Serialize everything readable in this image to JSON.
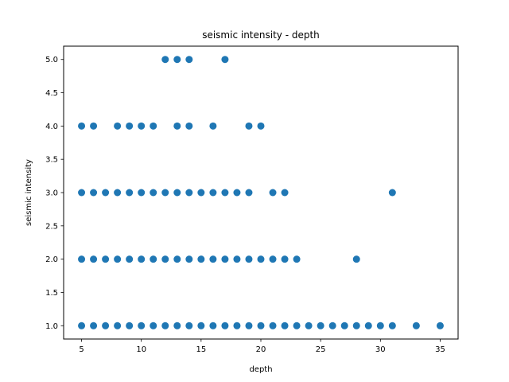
{
  "chart_data": {
    "type": "scatter",
    "title": "seismic intensity - depth",
    "xlabel": "depth",
    "ylabel": "seismic intensity",
    "xlim": [
      3.5,
      36.5
    ],
    "ylim": [
      0.8,
      5.2
    ],
    "xticks": [
      5,
      10,
      15,
      20,
      25,
      30,
      35
    ],
    "yticks": [
      1.0,
      1.5,
      2.0,
      2.5,
      3.0,
      3.5,
      4.0,
      4.5,
      5.0
    ],
    "grid": false,
    "marker_color": "#1f77b4",
    "series": [
      {
        "x": [
          5,
          6,
          7,
          8,
          9,
          10,
          11,
          12,
          13,
          14,
          15,
          16,
          17,
          18,
          19,
          20,
          21,
          22,
          23,
          24,
          25,
          26,
          27,
          28,
          29,
          30,
          31,
          33,
          35,
          5,
          6,
          7,
          8,
          9,
          10,
          11,
          12,
          13,
          14,
          15,
          16,
          17,
          18,
          19,
          20,
          21,
          22,
          23,
          28,
          5,
          6,
          7,
          8,
          9,
          10,
          11,
          12,
          13,
          14,
          15,
          16,
          17,
          18,
          19,
          21,
          22,
          31,
          5,
          6,
          8,
          9,
          10,
          11,
          13,
          14,
          16,
          19,
          20,
          12,
          13,
          14,
          17
        ],
        "y": [
          1,
          1,
          1,
          1,
          1,
          1,
          1,
          1,
          1,
          1,
          1,
          1,
          1,
          1,
          1,
          1,
          1,
          1,
          1,
          1,
          1,
          1,
          1,
          1,
          1,
          1,
          1,
          1,
          1,
          2,
          2,
          2,
          2,
          2,
          2,
          2,
          2,
          2,
          2,
          2,
          2,
          2,
          2,
          2,
          2,
          2,
          2,
          2,
          2,
          3,
          3,
          3,
          3,
          3,
          3,
          3,
          3,
          3,
          3,
          3,
          3,
          3,
          3,
          3,
          3,
          3,
          3,
          4,
          4,
          4,
          4,
          4,
          4,
          4,
          4,
          4,
          4,
          4,
          5,
          5,
          5,
          5
        ]
      }
    ]
  }
}
